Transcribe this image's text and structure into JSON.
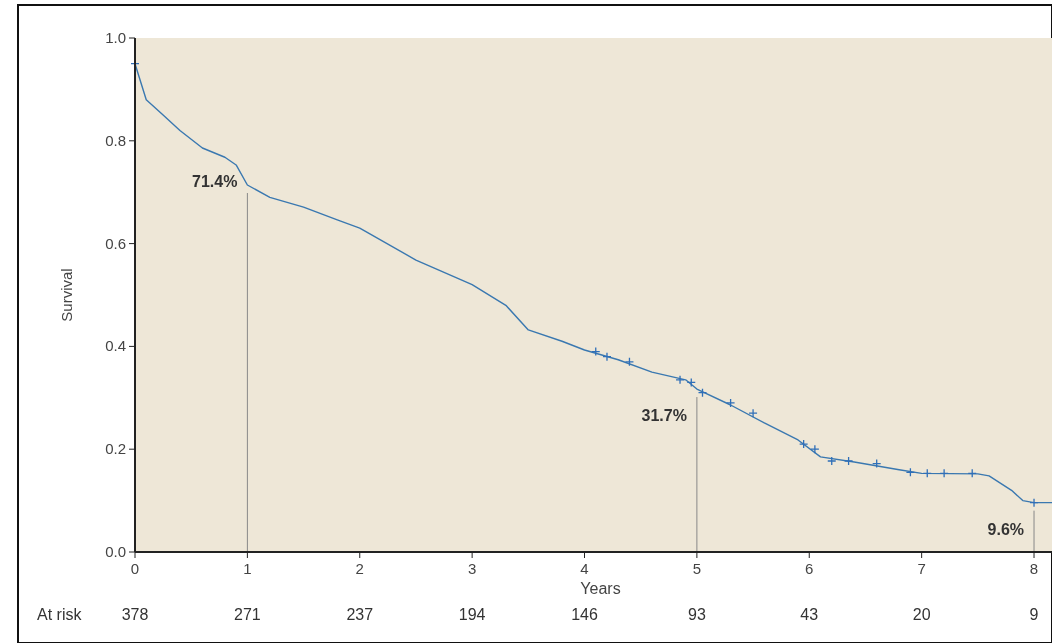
{
  "chart_data": {
    "type": "line",
    "xlabel": "Years",
    "ylabel": "Survival",
    "xlim": [
      0,
      8.16
    ],
    "xticks": [
      0,
      1,
      2,
      3,
      4,
      5,
      6,
      7,
      8
    ],
    "ylim": [
      0,
      1
    ],
    "yticks": [
      {
        "value": 0,
        "label": "0.0"
      },
      {
        "value": 0.2,
        "label": "0.2"
      },
      {
        "value": 0.4,
        "label": "0.4"
      },
      {
        "value": 0.6,
        "label": "0.6"
      },
      {
        "value": 0.8,
        "label": "0.8"
      },
      {
        "value": 1,
        "label": "1.0"
      }
    ],
    "grid": false,
    "series": [
      {
        "color": "#3a78b0",
        "x": [
          0,
          0.1,
          0.25,
          0.4,
          0.6,
          0.8,
          0.9,
          1,
          1.2,
          1.5,
          1.8,
          2,
          2.5,
          3,
          3.3,
          3.5,
          3.8,
          4,
          4.3,
          4.6,
          4.9,
          5,
          5.3,
          5.6,
          5.9,
          6.1,
          6.4,
          6.8,
          7,
          7.5,
          7.6,
          7.8,
          7.9,
          8,
          8.16
        ],
        "values": [
          0.95,
          0.88,
          0.85,
          0.82,
          0.786,
          0.768,
          0.753,
          0.714,
          0.69,
          0.671,
          0.646,
          0.63,
          0.568,
          0.52,
          0.48,
          0.432,
          0.41,
          0.393,
          0.374,
          0.35,
          0.335,
          0.317,
          0.286,
          0.251,
          0.218,
          0.185,
          0.175,
          0.16,
          0.153,
          0.152,
          0.148,
          0.12,
          0.1,
          0.096,
          0.096
        ]
      },
      {
        "type": "scatter",
        "marker": "cross",
        "color": "#2f6fb8",
        "x": [
          0,
          4.1,
          4.2,
          4.4,
          4.85,
          4.95,
          5.05,
          5.3,
          5.5,
          5.95,
          6.05,
          6.2,
          6.35,
          6.6,
          6.9,
          7.05,
          7.2,
          7.45,
          8
        ],
        "values": [
          0.95,
          0.39,
          0.38,
          0.37,
          0.335,
          0.33,
          0.31,
          0.29,
          0.27,
          0.21,
          0.2,
          0.177,
          0.177,
          0.172,
          0.155,
          0.153,
          0.153,
          0.153,
          0.096
        ]
      }
    ],
    "annotations": [
      {
        "text": "71.4%",
        "x": 1,
        "y": 0.714
      },
      {
        "text": "31.7%",
        "x": 5,
        "y": 0.317
      },
      {
        "text": "9.6%",
        "x": 8,
        "y": 0.096
      },
      "At risk",
      "378",
      "271",
      "237",
      "194",
      "146",
      "93",
      "43",
      "20",
      "9"
    ]
  }
}
